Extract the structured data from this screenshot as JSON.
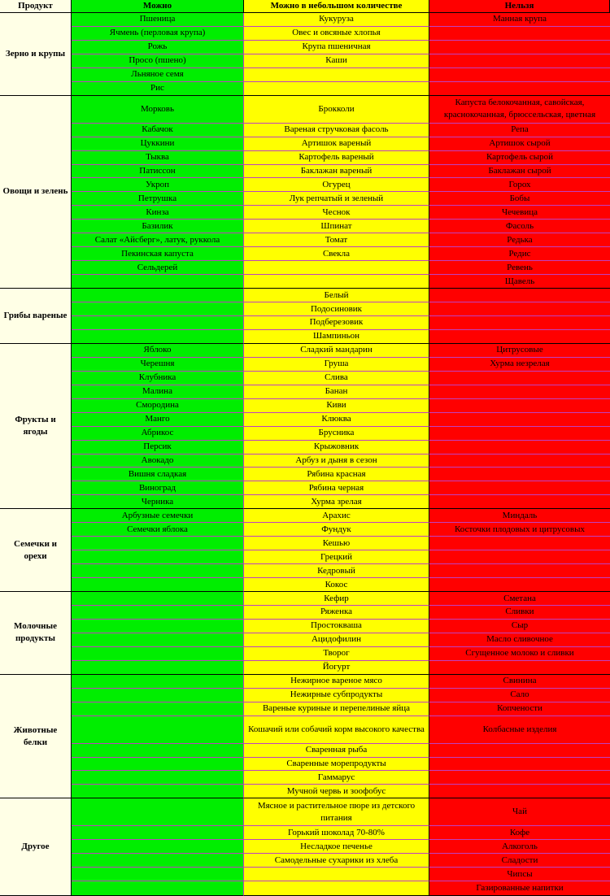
{
  "headers": {
    "product": "Продукт",
    "allowed": "Можно",
    "limited": "Можно в небольшом количестве",
    "forbidden": "Нельзя"
  },
  "groups": [
    {
      "name": "Зерно и крупы",
      "rows": [
        [
          "Пшеница",
          "Кукуруза",
          "Манная крупа"
        ],
        [
          "Ячмень (перловая крупа)",
          "Овес и овсяные хлопья",
          ""
        ],
        [
          "Рожь",
          "Крупа пшеничная",
          ""
        ],
        [
          "Просо (пшено)",
          "Каши",
          ""
        ],
        [
          "Льняное семя",
          "",
          ""
        ],
        [
          "Рис",
          "",
          ""
        ]
      ]
    },
    {
      "name": "Овощи и зелень",
      "rows": [
        [
          "Морковь",
          "Брокколи",
          "Капуста белокочанная, савойская, краснокочанная, брюссельская, цветная"
        ],
        [
          "Кабачок",
          "Вареная стручковая фасоль",
          "Репа"
        ],
        [
          "Цуккини",
          "Артишок вареный",
          "Артишок сырой"
        ],
        [
          "Тыква",
          "Картофель вареный",
          "Картофель сырой"
        ],
        [
          "Патиссон",
          "Баклажан вареный",
          "Баклажан сырой"
        ],
        [
          "Укроп",
          "Огурец",
          "Горох"
        ],
        [
          "Петрушка",
          "Лук репчатый и зеленый",
          "Бобы"
        ],
        [
          "Кинза",
          "Чеснок",
          "Чечевица"
        ],
        [
          "Базилик",
          "Шпинат",
          "Фасоль"
        ],
        [
          "Салат «Айсберг», латук, руккола",
          "Томат",
          "Редька"
        ],
        [
          "Пекинская капуста",
          "Свекла",
          "Редис"
        ],
        [
          "Сельдерей",
          "",
          "Ревень"
        ],
        [
          "",
          "",
          "Щавель"
        ]
      ]
    },
    {
      "name": "Грибы вареные",
      "rows": [
        [
          "",
          "Белый",
          ""
        ],
        [
          "",
          "Подосиновик",
          ""
        ],
        [
          "",
          "Подберезовик",
          ""
        ],
        [
          "",
          "Шампиньон",
          ""
        ]
      ]
    },
    {
      "name": "Фрукты и ягоды",
      "rows": [
        [
          "Яблоко",
          "Сладкий мандарин",
          "Цитрусовые"
        ],
        [
          "Черешня",
          "Груша",
          "Хурма незрелая"
        ],
        [
          "Клубника",
          "Слива",
          ""
        ],
        [
          "Малина",
          "Банан",
          ""
        ],
        [
          "Смородина",
          "Киви",
          ""
        ],
        [
          "Манго",
          "Клюква",
          ""
        ],
        [
          "Абрикос",
          "Брусника",
          ""
        ],
        [
          "Персик",
          "Крыжовник",
          ""
        ],
        [
          "Авокадо",
          "Арбуз и дыня в сезон",
          ""
        ],
        [
          "Вишня сладкая",
          "Рябина красная",
          ""
        ],
        [
          "Виноград",
          "Рябина черная",
          ""
        ],
        [
          "Черника",
          "Хурма зрелая",
          ""
        ]
      ]
    },
    {
      "name": "Семечки и орехи",
      "rows": [
        [
          "Арбузные семечки",
          "Арахис",
          "Миндаль"
        ],
        [
          "Семечки яблока",
          "Фундук",
          "Косточки плодовых и цитрусовых"
        ],
        [
          "",
          "Кешью",
          ""
        ],
        [
          "",
          "Грецкий",
          ""
        ],
        [
          "",
          "Кедровый",
          ""
        ],
        [
          "",
          "Кокос",
          ""
        ]
      ]
    },
    {
      "name": "Молочные продукты",
      "rows": [
        [
          "",
          "Кефир",
          "Сметана"
        ],
        [
          "",
          "Ряженка",
          "Сливки"
        ],
        [
          "",
          "Простокваша",
          "Сыр"
        ],
        [
          "",
          "Ацидофилин",
          "Масло сливочное"
        ],
        [
          "",
          "Творог",
          "Сгущенное молоко и сливки"
        ],
        [
          "",
          "Йогурт",
          ""
        ]
      ]
    },
    {
      "name": "Животные белки",
      "rows": [
        [
          "",
          "Нежирное вареное мясо",
          "Свинина"
        ],
        [
          "",
          "Нежирные субпродукты",
          "Сало"
        ],
        [
          "",
          "Вареные куриные и перепелиные яйца",
          "Копчености"
        ],
        [
          "",
          "Кошачий или собачий корм высокого качества",
          "Колбасные изделия"
        ],
        [
          "",
          "Сваренная рыба",
          ""
        ],
        [
          "",
          "Сваренные морепродукты",
          ""
        ],
        [
          "",
          "Гаммарус",
          ""
        ],
        [
          "",
          "Мучной червь и зоофобус",
          ""
        ]
      ]
    },
    {
      "name": "Другое",
      "rows": [
        [
          "",
          "Мясное и растительное пюре из детского питания",
          "Чай"
        ],
        [
          "",
          "Горький шоколад 70-80%",
          "Кофе"
        ],
        [
          "",
          "Несладкое печенье",
          "Алкоголь"
        ],
        [
          "",
          "Самодельные сухарики из хлеба",
          "Сладости"
        ],
        [
          "",
          "",
          "Чипсы"
        ],
        [
          "",
          "",
          "Газированные напитки"
        ]
      ]
    }
  ]
}
